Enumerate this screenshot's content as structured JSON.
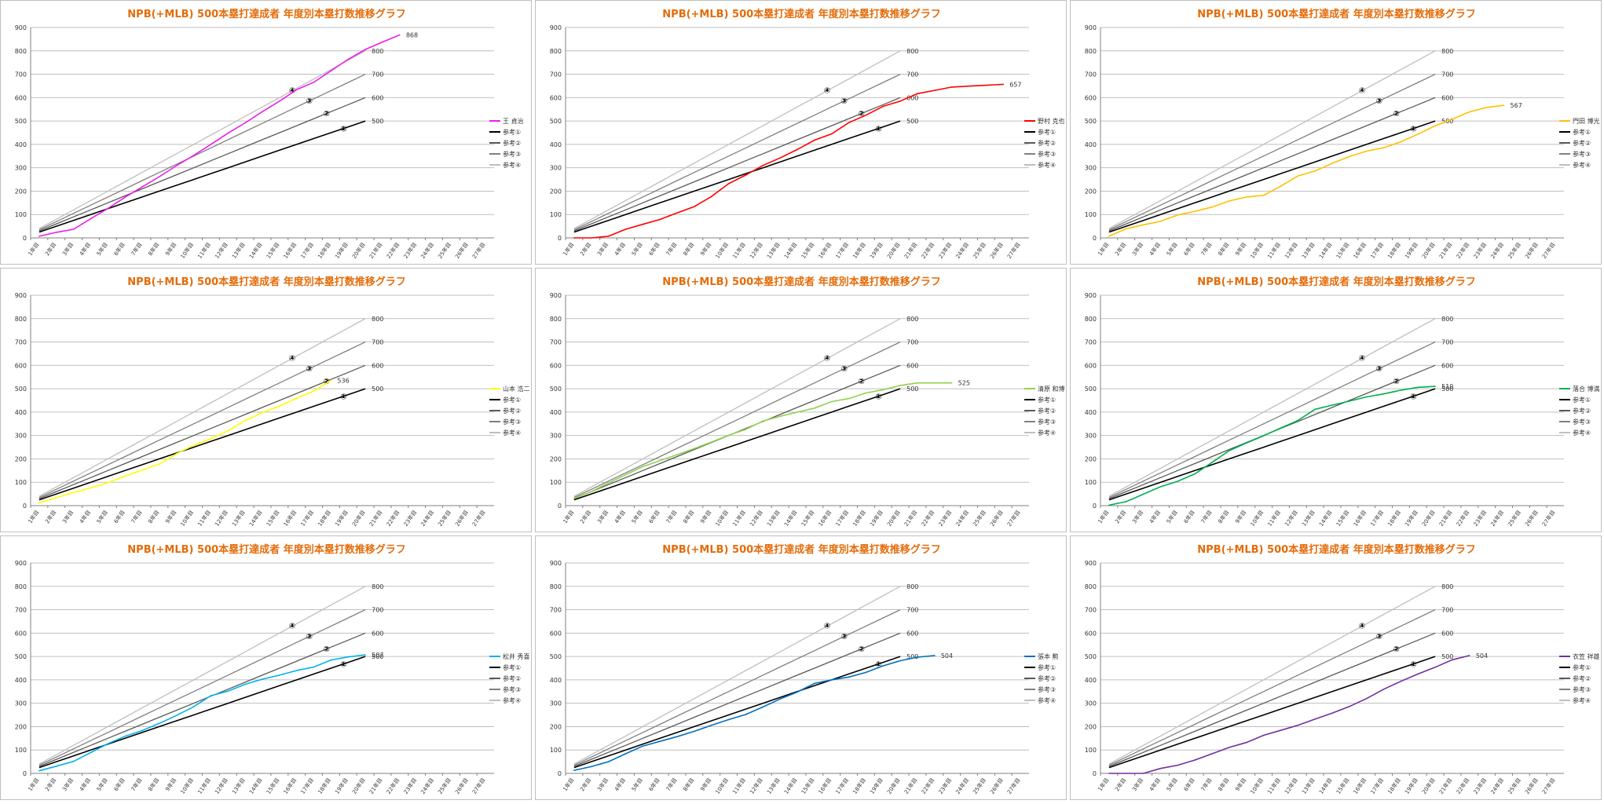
{
  "title": "NPB(+MLB) 500本塁打達成者 年度別本塁打数推移グラフ",
  "x_categories": [
    "1年目",
    "2年目",
    "3年目",
    "4年目",
    "5年目",
    "6年目",
    "7年目",
    "8年目",
    "9年目",
    "10年目",
    "11年目",
    "12年目",
    "13年目",
    "14年目",
    "15年目",
    "16年目",
    "17年目",
    "18年目",
    "19年目",
    "20年目",
    "21年目",
    "22年目",
    "23年目",
    "24年目",
    "25年目",
    "26年目",
    "27年目"
  ],
  "y_ticks": [
    "0",
    "100",
    "200",
    "300",
    "400",
    "500",
    "600",
    "700",
    "800",
    "900"
  ],
  "reference_series": [
    {
      "name": "参考①",
      "marker": "①",
      "end_label": "500",
      "color": "#000000",
      "values": [
        25,
        50,
        75,
        100,
        125,
        150,
        175,
        200,
        225,
        250,
        275,
        300,
        325,
        350,
        375,
        400,
        425,
        450,
        475,
        500
      ]
    },
    {
      "name": "参考②",
      "marker": "②",
      "end_label": "600",
      "color": "#595959",
      "values": [
        30,
        60,
        90,
        120,
        150,
        180,
        210,
        240,
        270,
        300,
        330,
        360,
        390,
        420,
        450,
        480,
        510,
        540,
        570,
        600
      ]
    },
    {
      "name": "参考③",
      "marker": "③",
      "end_label": "700",
      "color": "#7f7f7f",
      "values": [
        35,
        70,
        105,
        140,
        175,
        210,
        245,
        280,
        315,
        350,
        385,
        420,
        455,
        490,
        525,
        560,
        595,
        630,
        665,
        700
      ]
    },
    {
      "name": "参考④",
      "marker": "④",
      "end_label": "800",
      "color": "#bfbfbf",
      "values": [
        40,
        80,
        120,
        160,
        200,
        240,
        280,
        320,
        360,
        400,
        440,
        480,
        520,
        560,
        600,
        640,
        680,
        720,
        760,
        800
      ]
    }
  ],
  "chart_data": [
    {
      "type": "line",
      "title": "NPB(+MLB) 500本塁打達成者 年度別本塁打数推移グラフ",
      "ylim": [
        0,
        900
      ],
      "player": {
        "name": "王 貞治",
        "color": "#e91ee9",
        "end_label": "868",
        "values": [
          7,
          24,
          37,
          82,
          126,
          174,
          218,
          262,
          309,
          353,
          400,
          448,
          492,
          540,
          585,
          634,
          666,
          715,
          764,
          806,
          838,
          868
        ]
      }
    },
    {
      "type": "line",
      "title": "NPB(+MLB) 500本塁打達成者 年度別本塁打数推移グラフ",
      "ylim": [
        0,
        900
      ],
      "player": {
        "name": "野村 克也",
        "color": "#ff0000",
        "end_label": "657",
        "values": [
          0,
          0,
          7,
          37,
          58,
          79,
          107,
          134,
          177,
          232,
          269,
          310,
          342,
          378,
          418,
          445,
          493,
          525,
          563,
          585,
          617,
          631,
          645,
          649,
          653,
          657
        ]
      }
    },
    {
      "type": "line",
      "title": "NPB(+MLB) 500本塁打達成者 年度別本塁打数推移グラフ",
      "ylim": [
        0,
        900
      ],
      "player": {
        "name": "門田 博光",
        "color": "#ffc000",
        "end_label": "567",
        "values": [
          8,
          39,
          56,
          71,
          98,
          114,
          132,
          158,
          175,
          182,
          221,
          265,
          286,
          319,
          348,
          371,
          386,
          411,
          444,
          480,
          508,
          539,
          558,
          567
        ]
      }
    },
    {
      "type": "line",
      "title": "NPB(+MLB) 500本塁打達成者 年度別本塁打数推移グラフ",
      "ylim": [
        0,
        900
      ],
      "player": {
        "name": "山本 浩二",
        "color": "#ffff00",
        "end_label": "536",
        "values": [
          12,
          34,
          56,
          76,
          98,
          126,
          152,
          178,
          222,
          258,
          286,
          320,
          364,
          398,
          426,
          460,
          490,
          536
        ]
      }
    },
    {
      "type": "line",
      "title": "NPB(+MLB) 500本塁打達成者 年度別本塁打数推移グラフ",
      "ylim": [
        0,
        900
      ],
      "player": {
        "name": "清原 和博",
        "color": "#92d050",
        "end_label": "525",
        "values": [
          31,
          60,
          97,
          132,
          167,
          192,
          218,
          244,
          272,
          301,
          326,
          362,
          382,
          400,
          417,
          445,
          458,
          482,
          496,
          514,
          525,
          525,
          525
        ]
      }
    },
    {
      "type": "line",
      "title": "NPB(+MLB) 500本塁打達成者 年度別本塁打数推移グラフ",
      "ylim": [
        0,
        900
      ],
      "player": {
        "name": "落合 博満",
        "color": "#00b050",
        "end_label": "510",
        "values": [
          2,
          17,
          49,
          81,
          104,
          136,
          185,
          235,
          268,
          299,
          332,
          364,
          412,
          430,
          447,
          465,
          478,
          494,
          506,
          510
        ]
      }
    },
    {
      "type": "line",
      "title": "NPB(+MLB) 500本塁打達成者 年度別本塁打数推移グラフ",
      "ylim": [
        0,
        900
      ],
      "player": {
        "name": "松井 秀喜",
        "color": "#00b0f0",
        "end_label": "507",
        "values": [
          11,
          31,
          51,
          89,
          127,
          159,
          183,
          214,
          248,
          285,
          332,
          352,
          381,
          403,
          420,
          440,
          455,
          485,
          498,
          507
        ]
      }
    },
    {
      "type": "line",
      "title": "NPB(+MLB) 500本塁打達成者 年度別本塁打数推移グラフ",
      "ylim": [
        0,
        900
      ],
      "player": {
        "name": "張本 勲",
        "color": "#0070c0",
        "end_label": "504",
        "values": [
          13,
          29,
          50,
          84,
          117,
          137,
          157,
          180,
          206,
          230,
          252,
          284,
          318,
          348,
          385,
          400,
          412,
          432,
          460,
          482,
          497,
          504
        ]
      }
    },
    {
      "type": "line",
      "title": "NPB(+MLB) 500本塁打達成者 年度別本塁打数推移グラフ",
      "ylim": [
        0,
        900
      ],
      "player": {
        "name": "衣笠 祥雄",
        "color": "#7030a0",
        "end_label": "504",
        "values": [
          0,
          0,
          0,
          21,
          35,
          57,
          84,
          111,
          132,
          163,
          184,
          206,
          232,
          258,
          286,
          320,
          360,
          394,
          425,
          454,
          486,
          504
        ]
      }
    }
  ]
}
